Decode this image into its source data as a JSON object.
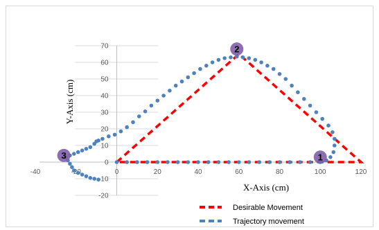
{
  "chart_data": {
    "type": "scatter",
    "xlabel": "X-Axis (cm)",
    "ylabel": "Y-Axis  (cm)",
    "xlim": [
      -40,
      120
    ],
    "ylim": [
      -20,
      70
    ],
    "x_ticks": [
      -40,
      -20,
      0,
      20,
      40,
      60,
      80,
      100,
      120
    ],
    "y_ticks": [
      -20,
      -10,
      0,
      10,
      20,
      30,
      40,
      50,
      60,
      70
    ],
    "grid": "horizontal",
    "legend_position": "bottom-right",
    "colors": {
      "desirable": "#ff0000",
      "trajectory": "#4f81bd",
      "marker": "#7f5fa8"
    },
    "series": [
      {
        "name": "Desirable Movement",
        "style": "dashed-line",
        "points": [
          [
            0,
            0
          ],
          [
            60,
            65
          ],
          [
            120,
            0
          ],
          [
            0,
            0
          ]
        ]
      },
      {
        "name": "Trajectory movement",
        "style": "dots",
        "points": [
          [
            100,
            0
          ],
          [
            95,
            0
          ],
          [
            90,
            0
          ],
          [
            85,
            0
          ],
          [
            80,
            0
          ],
          [
            75,
            0
          ],
          [
            70,
            0
          ],
          [
            65,
            0
          ],
          [
            60,
            0
          ],
          [
            55,
            0
          ],
          [
            50,
            0
          ],
          [
            45,
            0
          ],
          [
            40,
            0
          ],
          [
            35,
            0
          ],
          [
            30,
            0
          ],
          [
            25,
            0
          ],
          [
            20,
            0
          ],
          [
            15,
            0
          ],
          [
            10,
            0
          ],
          [
            5,
            0
          ],
          [
            0,
            0
          ],
          [
            103,
            1
          ],
          [
            105,
            3
          ],
          [
            106.5,
            6
          ],
          [
            107,
            10
          ],
          [
            107,
            14
          ],
          [
            106,
            18
          ],
          [
            104,
            22
          ],
          [
            101,
            26
          ],
          [
            98,
            30
          ],
          [
            95,
            34
          ],
          [
            92,
            38
          ],
          [
            89,
            42
          ],
          [
            86,
            46
          ],
          [
            83,
            50
          ],
          [
            80,
            53
          ],
          [
            77,
            56
          ],
          [
            74,
            58
          ],
          [
            71,
            60
          ],
          [
            68,
            61.5
          ],
          [
            65,
            62.5
          ],
          [
            62,
            63
          ],
          [
            59,
            63.5
          ],
          [
            56,
            63
          ],
          [
            53,
            62.5
          ],
          [
            50,
            61.5
          ],
          [
            47,
            60
          ],
          [
            44,
            58
          ],
          [
            41,
            56
          ],
          [
            38,
            53.5
          ],
          [
            35,
            51
          ],
          [
            32,
            48.5
          ],
          [
            29,
            46
          ],
          [
            26,
            43
          ],
          [
            23,
            40
          ],
          [
            20,
            37
          ],
          [
            17,
            34
          ],
          [
            14,
            30.5
          ],
          [
            11,
            27.5
          ],
          [
            8,
            24
          ],
          [
            5,
            21
          ],
          [
            2,
            18.5
          ],
          [
            -1,
            16.5
          ],
          [
            -4,
            15.5
          ],
          [
            -7,
            14
          ],
          [
            -9,
            13
          ],
          [
            -10,
            12.5
          ],
          [
            -11,
            11
          ],
          [
            -13,
            9
          ],
          [
            -15,
            8
          ],
          [
            -17,
            7
          ],
          [
            -19,
            6
          ],
          [
            -21,
            5
          ],
          [
            -23,
            4
          ],
          [
            -25,
            3
          ],
          [
            -24,
            1
          ],
          [
            -23,
            -1
          ],
          [
            -22,
            -3
          ],
          [
            -21,
            -5
          ],
          [
            -19,
            -6.5
          ],
          [
            -17,
            -7.5
          ],
          [
            -15,
            -8.5
          ],
          [
            -13,
            -9.5
          ],
          [
            -11,
            -10
          ],
          [
            -9,
            -10.5
          ]
        ]
      }
    ],
    "markers": [
      {
        "label": "1",
        "x": 100,
        "y": 3
      },
      {
        "label": "2",
        "x": 59,
        "y": 68
      },
      {
        "label": "3",
        "x": -26,
        "y": 4
      }
    ]
  }
}
